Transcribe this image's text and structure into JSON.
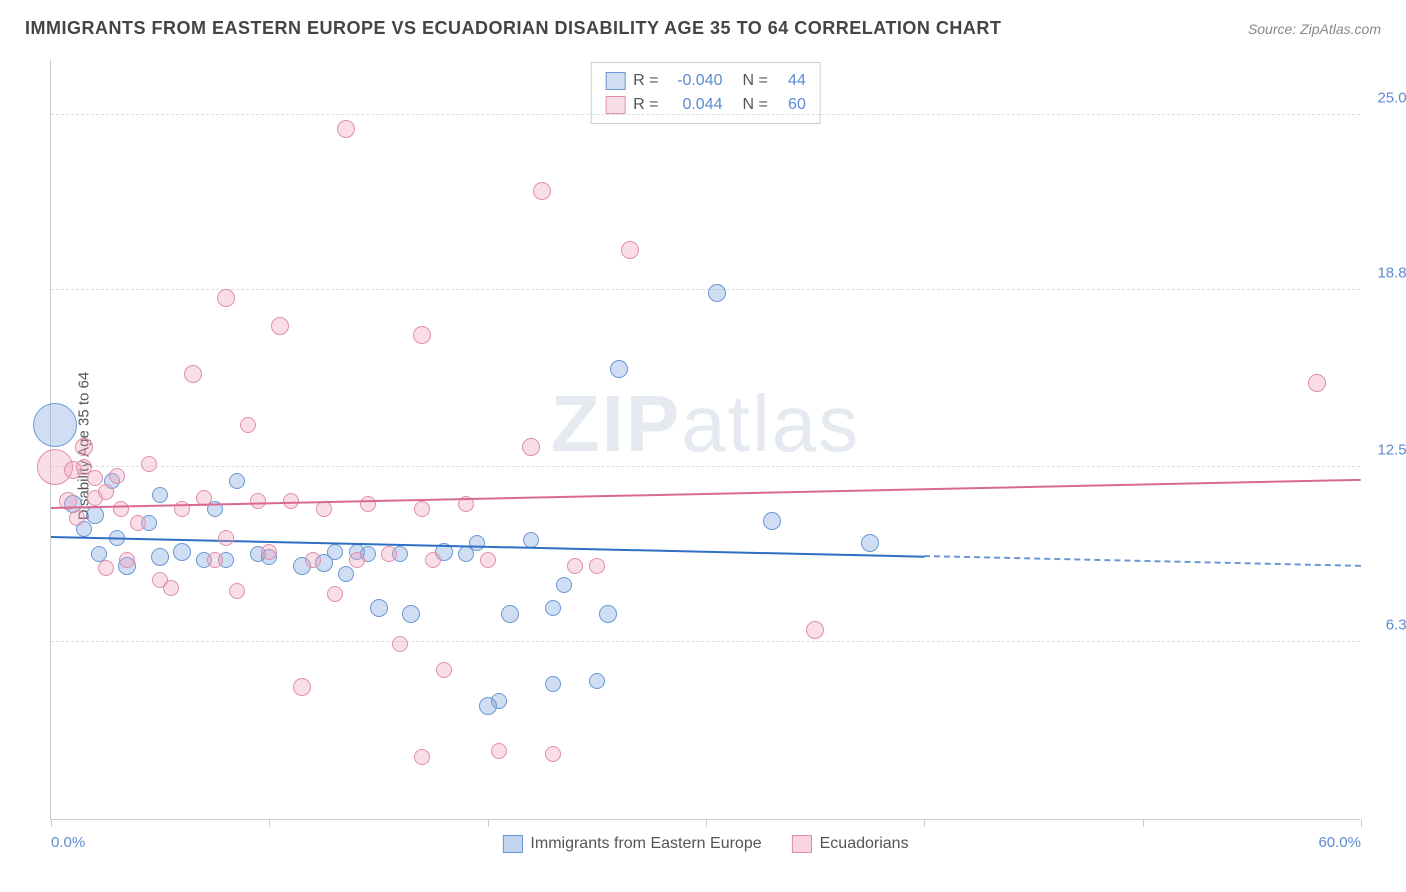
{
  "header": {
    "title": "IMMIGRANTS FROM EASTERN EUROPE VS ECUADORIAN DISABILITY AGE 35 TO 64 CORRELATION CHART",
    "source_prefix": "Source: ",
    "source_name": "ZipAtlas.com"
  },
  "chart": {
    "type": "scatter",
    "watermark": "ZIPatlas",
    "ylabel": "Disability Age 35 to 64",
    "xlim": [
      0,
      60
    ],
    "ylim": [
      0,
      27
    ],
    "xtick_positions": [
      0,
      10,
      20,
      30,
      40,
      50,
      60
    ],
    "xtick_labels": {
      "0": "0.0%",
      "60": "60.0%"
    },
    "ytick_positions": [
      6.3,
      12.5,
      18.8,
      25.0
    ],
    "ytick_labels": [
      "6.3%",
      "12.5%",
      "18.8%",
      "25.0%"
    ],
    "grid_color": "#dddddd",
    "axis_color": "#cccccc",
    "background_color": "#ffffff",
    "label_color_axis": "#5b8bd4",
    "series": [
      {
        "name": "Immigrants from Eastern Europe",
        "fill": "rgba(120,160,220,0.35)",
        "stroke": "#6a97d4",
        "trend_color": "#2f6fc4",
        "R": "-0.040",
        "N": "44",
        "trend": {
          "x1": 0,
          "y1": 10.0,
          "x2": 40,
          "y2": 9.3,
          "dash_to_x": 60
        },
        "points": [
          {
            "x": 0.2,
            "y": 14.0,
            "r": 22
          },
          {
            "x": 1.0,
            "y": 11.2,
            "r": 9
          },
          {
            "x": 1.5,
            "y": 10.3,
            "r": 8
          },
          {
            "x": 2.0,
            "y": 10.8,
            "r": 9
          },
          {
            "x": 2.2,
            "y": 9.4,
            "r": 8
          },
          {
            "x": 2.8,
            "y": 12.0,
            "r": 8
          },
          {
            "x": 3.0,
            "y": 10.0,
            "r": 8
          },
          {
            "x": 3.5,
            "y": 9.0,
            "r": 9
          },
          {
            "x": 4.5,
            "y": 10.5,
            "r": 8
          },
          {
            "x": 5.0,
            "y": 9.3,
            "r": 9
          },
          {
            "x": 5.0,
            "y": 11.5,
            "r": 8
          },
          {
            "x": 6.0,
            "y": 9.5,
            "r": 9
          },
          {
            "x": 7.0,
            "y": 9.2,
            "r": 8
          },
          {
            "x": 7.5,
            "y": 11.0,
            "r": 8
          },
          {
            "x": 8.0,
            "y": 9.2,
            "r": 8
          },
          {
            "x": 8.5,
            "y": 12.0,
            "r": 8
          },
          {
            "x": 9.5,
            "y": 9.4,
            "r": 8
          },
          {
            "x": 10.0,
            "y": 9.3,
            "r": 8
          },
          {
            "x": 11.5,
            "y": 9.0,
            "r": 9
          },
          {
            "x": 12.5,
            "y": 9.1,
            "r": 9
          },
          {
            "x": 13.0,
            "y": 9.5,
            "r": 8
          },
          {
            "x": 13.5,
            "y": 8.7,
            "r": 8
          },
          {
            "x": 14.0,
            "y": 9.5,
            "r": 8
          },
          {
            "x": 14.5,
            "y": 9.4,
            "r": 8
          },
          {
            "x": 15.0,
            "y": 7.5,
            "r": 9
          },
          {
            "x": 16.0,
            "y": 9.4,
            "r": 8
          },
          {
            "x": 16.5,
            "y": 7.3,
            "r": 9
          },
          {
            "x": 18.0,
            "y": 9.5,
            "r": 9
          },
          {
            "x": 19.0,
            "y": 9.4,
            "r": 8
          },
          {
            "x": 19.5,
            "y": 9.8,
            "r": 8
          },
          {
            "x": 20.0,
            "y": 4.0,
            "r": 9
          },
          {
            "x": 20.5,
            "y": 4.2,
            "r": 8
          },
          {
            "x": 21.0,
            "y": 7.3,
            "r": 9
          },
          {
            "x": 22.0,
            "y": 9.9,
            "r": 8
          },
          {
            "x": 23.0,
            "y": 4.8,
            "r": 8
          },
          {
            "x": 23.0,
            "y": 7.5,
            "r": 8
          },
          {
            "x": 23.5,
            "y": 8.3,
            "r": 8
          },
          {
            "x": 25.0,
            "y": 4.9,
            "r": 8
          },
          {
            "x": 25.5,
            "y": 7.3,
            "r": 9
          },
          {
            "x": 26.0,
            "y": 16.0,
            "r": 9
          },
          {
            "x": 30.5,
            "y": 18.7,
            "r": 9
          },
          {
            "x": 33.0,
            "y": 10.6,
            "r": 9
          },
          {
            "x": 37.5,
            "y": 9.8,
            "r": 9
          }
        ]
      },
      {
        "name": "Ecuadorians",
        "fill": "rgba(240,160,185,0.35)",
        "stroke": "#e08fa8",
        "trend_color": "#d96a8f",
        "R": "0.044",
        "N": "60",
        "trend": {
          "x1": 0,
          "y1": 11.0,
          "x2": 60,
          "y2": 12.0
        },
        "points": [
          {
            "x": 0.2,
            "y": 12.5,
            "r": 18
          },
          {
            "x": 0.8,
            "y": 11.3,
            "r": 9
          },
          {
            "x": 1.0,
            "y": 12.4,
            "r": 9
          },
          {
            "x": 1.2,
            "y": 10.7,
            "r": 8
          },
          {
            "x": 1.5,
            "y": 12.5,
            "r": 8
          },
          {
            "x": 1.5,
            "y": 13.2,
            "r": 9
          },
          {
            "x": 2.0,
            "y": 11.4,
            "r": 8
          },
          {
            "x": 2.0,
            "y": 12.1,
            "r": 8
          },
          {
            "x": 2.5,
            "y": 11.6,
            "r": 8
          },
          {
            "x": 2.5,
            "y": 8.9,
            "r": 8
          },
          {
            "x": 3.0,
            "y": 12.2,
            "r": 8
          },
          {
            "x": 3.2,
            "y": 11.0,
            "r": 8
          },
          {
            "x": 3.5,
            "y": 9.2,
            "r": 8
          },
          {
            "x": 4.0,
            "y": 10.5,
            "r": 8
          },
          {
            "x": 4.5,
            "y": 12.6,
            "r": 8
          },
          {
            "x": 5.0,
            "y": 8.5,
            "r": 8
          },
          {
            "x": 5.5,
            "y": 8.2,
            "r": 8
          },
          {
            "x": 6.0,
            "y": 11.0,
            "r": 8
          },
          {
            "x": 6.5,
            "y": 15.8,
            "r": 9
          },
          {
            "x": 7.0,
            "y": 11.4,
            "r": 8
          },
          {
            "x": 7.5,
            "y": 9.2,
            "r": 8
          },
          {
            "x": 8.0,
            "y": 18.5,
            "r": 9
          },
          {
            "x": 8.0,
            "y": 10.0,
            "r": 8
          },
          {
            "x": 8.5,
            "y": 8.1,
            "r": 8
          },
          {
            "x": 9.0,
            "y": 14.0,
            "r": 8
          },
          {
            "x": 9.5,
            "y": 11.3,
            "r": 8
          },
          {
            "x": 10.0,
            "y": 9.5,
            "r": 8
          },
          {
            "x": 10.5,
            "y": 17.5,
            "r": 9
          },
          {
            "x": 11.0,
            "y": 11.3,
            "r": 8
          },
          {
            "x": 11.5,
            "y": 4.7,
            "r": 9
          },
          {
            "x": 12.0,
            "y": 9.2,
            "r": 8
          },
          {
            "x": 12.5,
            "y": 11.0,
            "r": 8
          },
          {
            "x": 13.0,
            "y": 8.0,
            "r": 8
          },
          {
            "x": 13.5,
            "y": 24.5,
            "r": 9
          },
          {
            "x": 14.0,
            "y": 9.2,
            "r": 8
          },
          {
            "x": 14.5,
            "y": 11.2,
            "r": 8
          },
          {
            "x": 15.5,
            "y": 9.4,
            "r": 8
          },
          {
            "x": 16.0,
            "y": 6.2,
            "r": 8
          },
          {
            "x": 17.0,
            "y": 11.0,
            "r": 8
          },
          {
            "x": 17.0,
            "y": 17.2,
            "r": 9
          },
          {
            "x": 17.0,
            "y": 2.2,
            "r": 8
          },
          {
            "x": 17.5,
            "y": 9.2,
            "r": 8
          },
          {
            "x": 18.0,
            "y": 5.3,
            "r": 8
          },
          {
            "x": 19.0,
            "y": 11.2,
            "r": 8
          },
          {
            "x": 20.0,
            "y": 9.2,
            "r": 8
          },
          {
            "x": 20.5,
            "y": 2.4,
            "r": 8
          },
          {
            "x": 22.0,
            "y": 13.2,
            "r": 9
          },
          {
            "x": 22.5,
            "y": 22.3,
            "r": 9
          },
          {
            "x": 23.0,
            "y": 2.3,
            "r": 8
          },
          {
            "x": 24.0,
            "y": 9.0,
            "r": 8
          },
          {
            "x": 25.0,
            "y": 9.0,
            "r": 8
          },
          {
            "x": 26.5,
            "y": 20.2,
            "r": 9
          },
          {
            "x": 35.0,
            "y": 6.7,
            "r": 9
          },
          {
            "x": 58.0,
            "y": 15.5,
            "r": 9
          }
        ]
      }
    ],
    "legend_bottom": [
      {
        "label": "Immigrants from Eastern Europe",
        "fill": "rgba(120,160,220,0.45)",
        "stroke": "#6a97d4"
      },
      {
        "label": "Ecuadorians",
        "fill": "rgba(240,160,185,0.45)",
        "stroke": "#e08fa8"
      }
    ]
  }
}
